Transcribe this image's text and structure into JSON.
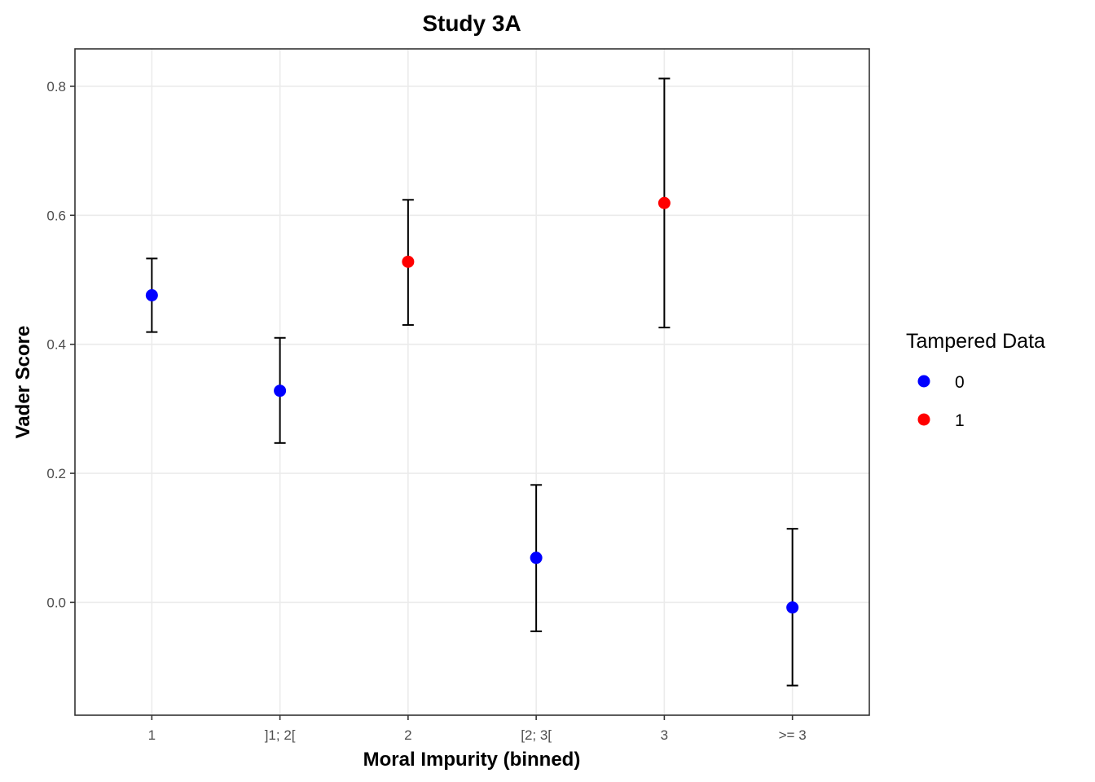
{
  "chart_data": {
    "type": "scatter",
    "title": "Study 3A",
    "xlabel": "Moral Impurity (binned)",
    "ylabel": "Vader Score",
    "categories": [
      "1",
      "]1; 2[",
      "2",
      "[2; 3[",
      "3",
      ">= 3"
    ],
    "ylim": [
      -0.175,
      0.858
    ],
    "yticks": [
      0.0,
      0.2,
      0.4,
      0.6,
      0.8
    ],
    "ytick_labels": [
      "0.0",
      "0.2",
      "0.4",
      "0.6",
      "0.8"
    ],
    "grid": true,
    "legend": {
      "title": "Tampered Data",
      "position": "right",
      "entries": [
        {
          "label": "0",
          "color": "#0000ff"
        },
        {
          "label": "1",
          "color": "#ff0000"
        }
      ]
    },
    "points": [
      {
        "category": "1",
        "y": 0.476,
        "lower": 0.419,
        "upper": 0.533,
        "group": "0"
      },
      {
        "category": "]1; 2[",
        "y": 0.328,
        "lower": 0.247,
        "upper": 0.41,
        "group": "0"
      },
      {
        "category": "2",
        "y": 0.528,
        "lower": 0.43,
        "upper": 0.624,
        "group": "1"
      },
      {
        "category": "[2; 3[",
        "y": 0.069,
        "lower": -0.045,
        "upper": 0.182,
        "group": "0"
      },
      {
        "category": "3",
        "y": 0.619,
        "lower": 0.426,
        "upper": 0.812,
        "group": "1"
      },
      {
        "category": ">= 3",
        "y": -0.008,
        "lower": -0.129,
        "upper": 0.114,
        "group": "0"
      }
    ]
  }
}
